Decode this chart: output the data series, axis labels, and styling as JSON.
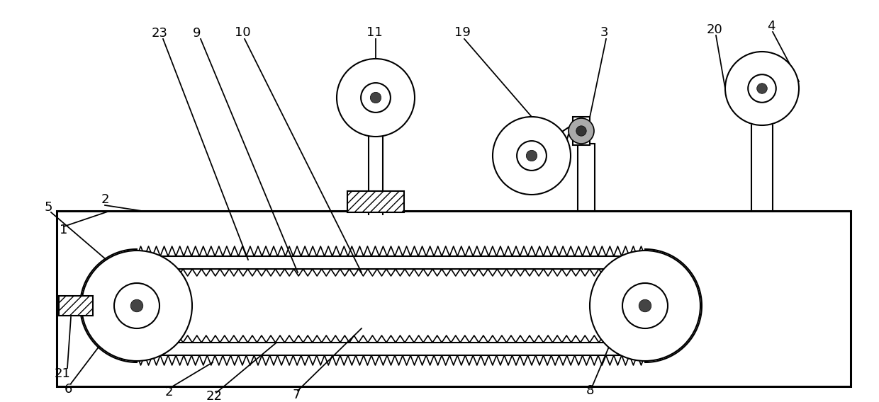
{
  "bg_color": "#ffffff",
  "line_color": "#000000",
  "lw": 1.5,
  "tlw": 2.2,
  "fig_width": 12.4,
  "fig_height": 5.68,
  "dpi": 100
}
